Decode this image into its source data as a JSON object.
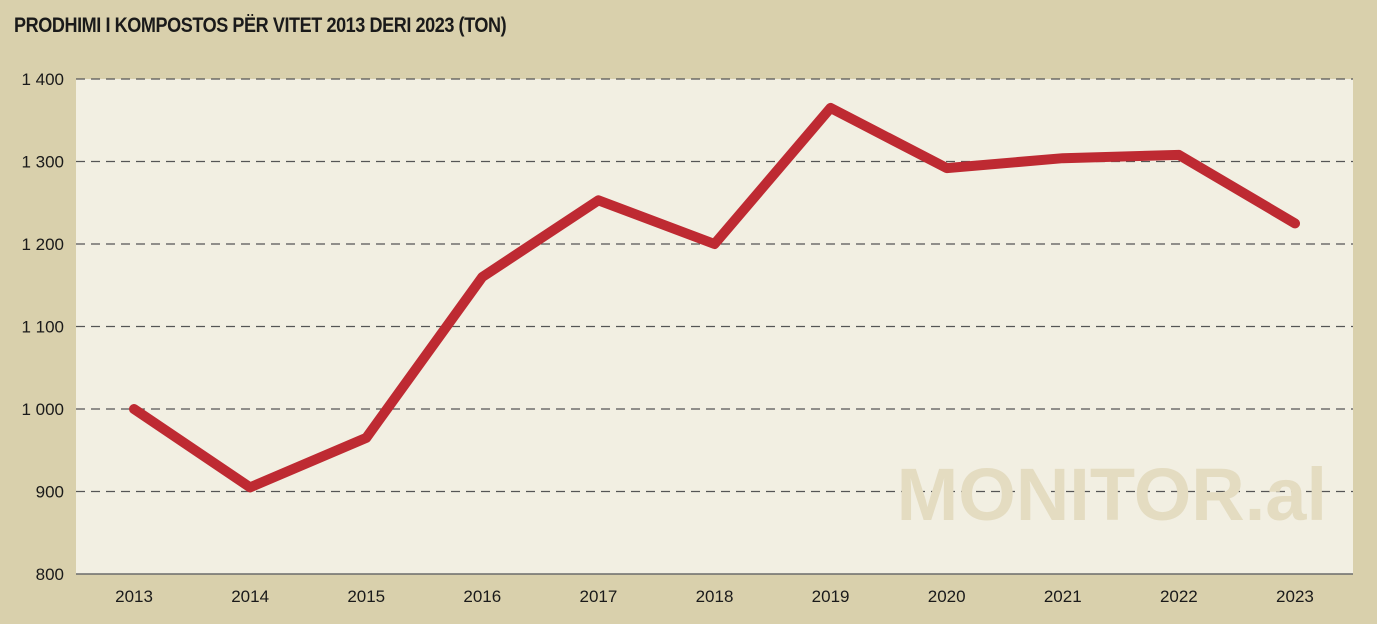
{
  "chart_data": {
    "type": "line",
    "title": "PRODHIMI I KOMPOSTOS PËR VITET 2013 DERI 2023 (TON)",
    "xlabel": "",
    "ylabel": "",
    "categories": [
      "2013",
      "2014",
      "2015",
      "2016",
      "2017",
      "2018",
      "2019",
      "2020",
      "2021",
      "2022",
      "2023"
    ],
    "series": [
      {
        "values": [
          1000,
          905,
          965,
          1160,
          1253,
          1200,
          1365,
          1292,
          1304,
          1308,
          1225
        ]
      }
    ],
    "ylim": [
      800,
      1400
    ],
    "yticks": [
      800,
      900,
      1000,
      1100,
      1200,
      1300,
      1400
    ],
    "ytick_labels": [
      "800",
      "900",
      "1 000",
      "1 100",
      "1 200",
      "1 300",
      "1 400"
    ],
    "grid": "horizontal dashed",
    "watermark": "MONITOR.al",
    "colors": {
      "line": "#be2a32",
      "plot_bg": "#f2efe2",
      "page_bg": "#d9d0ac",
      "grid": "#555555"
    }
  }
}
